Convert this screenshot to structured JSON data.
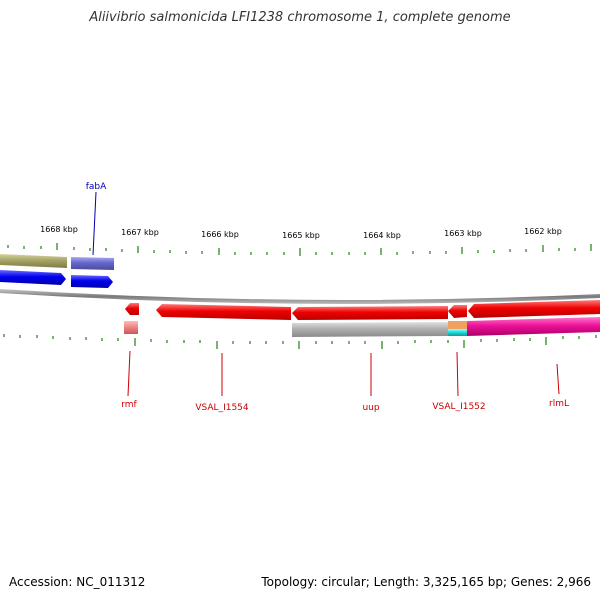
{
  "title": "Aliivibrio salmonicida LFI1238 chromosome 1, complete genome",
  "footer": {
    "accession": "Accession: NC_011312",
    "summary": "Topology: circular; Length: 3,325,165 bp; Genes: 2,966"
  },
  "ruler": {
    "labels": [
      "1668 kbp",
      "1667 kbp",
      "1666 kbp",
      "1665 kbp",
      "1664 kbp",
      "1663 kbp",
      "1662 kbp"
    ]
  },
  "gene_labels": {
    "fabA": "fabA",
    "rmf": "rmf",
    "vsal_i1554": "VSAL_I1554",
    "uup": "uup",
    "vsal_i1552": "VSAL_I1552",
    "rlmL": "rlmL"
  },
  "colors": {
    "backbone": "#8a8a8a",
    "tick": "#2e8b22",
    "forward_gene": "#6666cc",
    "forward_gene_dark": "#0000ee",
    "olive_gene": "#a6a466",
    "reverse_gene": "#ee0000",
    "gray_gene": "#b0b0b0",
    "magenta_gene": "#ee1199",
    "cyan_gene": "#22dddd",
    "pink_gene": "#ee8888",
    "label_blue": "#0000aa",
    "label_red": "#cc0000"
  }
}
